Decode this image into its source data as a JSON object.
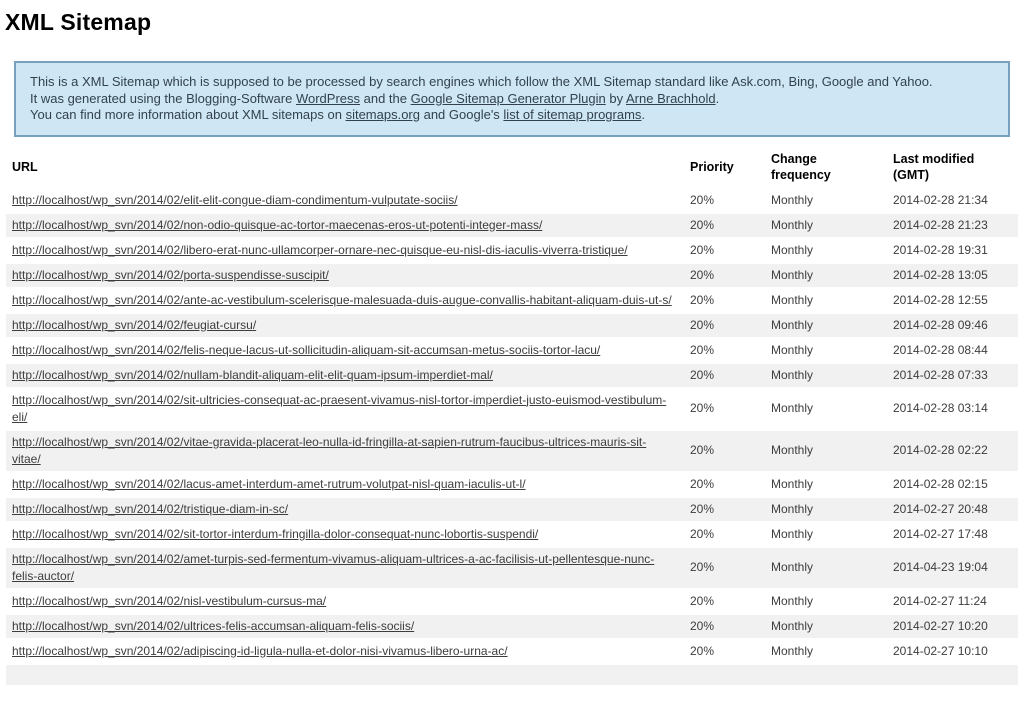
{
  "page": {
    "title": "XML Sitemap"
  },
  "colors": {
    "info_box_background": "#cfe7f5",
    "info_box_border": "#76a0bd",
    "row_stripe": "#f1f1f1",
    "text": "#3d3d3d"
  },
  "intro": {
    "line1": "This is a XML Sitemap which is supposed to be processed by search engines which follow the XML Sitemap standard like Ask.com, Bing, Google and Yahoo.",
    "line2": {
      "t1": "It was generated using the Blogging-Software ",
      "l1": "WordPress",
      "t2": " and the ",
      "l2": "Google Sitemap Generator Plugin",
      "t3": " by ",
      "l3": "Arne Brachhold",
      "t4": "."
    },
    "line3": {
      "t1": "You can find more information about XML sitemaps on ",
      "l1": "sitemaps.org",
      "t2": " and Google's ",
      "l2": "list of sitemap programs",
      "t3": "."
    }
  },
  "table": {
    "headers": {
      "url": "URL",
      "priority": "Priority",
      "change_frequency": "Change frequency",
      "last_modified": "Last modified (GMT)"
    },
    "rows": [
      {
        "url": "http://localhost/wp_svn/2014/02/elit-elit-congue-diam-condimentum-vulputate-sociis/",
        "priority": "20%",
        "change_frequency": "Monthly",
        "last_modified": "2014-02-28 21:34"
      },
      {
        "url": "http://localhost/wp_svn/2014/02/non-odio-quisque-ac-tortor-maecenas-eros-ut-potenti-integer-mass/",
        "priority": "20%",
        "change_frequency": "Monthly",
        "last_modified": "2014-02-28 21:23"
      },
      {
        "url": "http://localhost/wp_svn/2014/02/libero-erat-nunc-ullamcorper-ornare-nec-quisque-eu-nisl-dis-iaculis-viverra-tristique/",
        "priority": "20%",
        "change_frequency": "Monthly",
        "last_modified": "2014-02-28 19:31"
      },
      {
        "url": "http://localhost/wp_svn/2014/02/porta-suspendisse-suscipit/",
        "priority": "20%",
        "change_frequency": "Monthly",
        "last_modified": "2014-02-28 13:05"
      },
      {
        "url": "http://localhost/wp_svn/2014/02/ante-ac-vestibulum-scelerisque-malesuada-duis-augue-convallis-habitant-aliquam-duis-ut-s/",
        "priority": "20%",
        "change_frequency": "Monthly",
        "last_modified": "2014-02-28 12:55"
      },
      {
        "url": "http://localhost/wp_svn/2014/02/feugiat-cursu/",
        "priority": "20%",
        "change_frequency": "Monthly",
        "last_modified": "2014-02-28 09:46"
      },
      {
        "url": "http://localhost/wp_svn/2014/02/felis-neque-lacus-ut-sollicitudin-aliquam-sit-accumsan-metus-sociis-tortor-lacu/",
        "priority": "20%",
        "change_frequency": "Monthly",
        "last_modified": "2014-02-28 08:44"
      },
      {
        "url": "http://localhost/wp_svn/2014/02/nullam-blandit-aliquam-elit-elit-quam-ipsum-imperdiet-mal/",
        "priority": "20%",
        "change_frequency": "Monthly",
        "last_modified": "2014-02-28 07:33"
      },
      {
        "url": "http://localhost/wp_svn/2014/02/sit-ultricies-consequat-ac-praesent-vivamus-nisl-tortor-imperdiet-justo-euismod-vestibulum-eli/",
        "priority": "20%",
        "change_frequency": "Monthly",
        "last_modified": "2014-02-28 03:14"
      },
      {
        "url": "http://localhost/wp_svn/2014/02/vitae-gravida-placerat-leo-nulla-id-fringilla-at-sapien-rutrum-faucibus-ultrices-mauris-sit-vitae/",
        "priority": "20%",
        "change_frequency": "Monthly",
        "last_modified": "2014-02-28 02:22"
      },
      {
        "url": "http://localhost/wp_svn/2014/02/lacus-amet-interdum-amet-rutrum-volutpat-nisl-quam-iaculis-ut-l/",
        "priority": "20%",
        "change_frequency": "Monthly",
        "last_modified": "2014-02-28 02:15"
      },
      {
        "url": "http://localhost/wp_svn/2014/02/tristique-diam-in-sc/",
        "priority": "20%",
        "change_frequency": "Monthly",
        "last_modified": "2014-02-27 20:48"
      },
      {
        "url": "http://localhost/wp_svn/2014/02/sit-tortor-interdum-fringilla-dolor-consequat-nunc-lobortis-suspendi/",
        "priority": "20%",
        "change_frequency": "Monthly",
        "last_modified": "2014-02-27 17:48"
      },
      {
        "url": "http://localhost/wp_svn/2014/02/amet-turpis-sed-fermentum-vivamus-aliquam-ultrices-a-ac-facilisis-ut-pellentesque-nunc-felis-auctor/",
        "priority": "20%",
        "change_frequency": "Monthly",
        "last_modified": "2014-04-23 19:04"
      },
      {
        "url": "http://localhost/wp_svn/2014/02/nisl-vestibulum-cursus-ma/",
        "priority": "20%",
        "change_frequency": "Monthly",
        "last_modified": "2014-02-27 11:24"
      },
      {
        "url": "http://localhost/wp_svn/2014/02/ultrices-felis-accumsan-aliquam-felis-sociis/",
        "priority": "20%",
        "change_frequency": "Monthly",
        "last_modified": "2014-02-27 10:20"
      },
      {
        "url": "http://localhost/wp_svn/2014/02/adipiscing-id-ligula-nulla-et-dolor-nisi-vivamus-libero-urna-ac/",
        "priority": "20%",
        "change_frequency": "Monthly",
        "last_modified": "2014-02-27 10:10"
      }
    ]
  }
}
